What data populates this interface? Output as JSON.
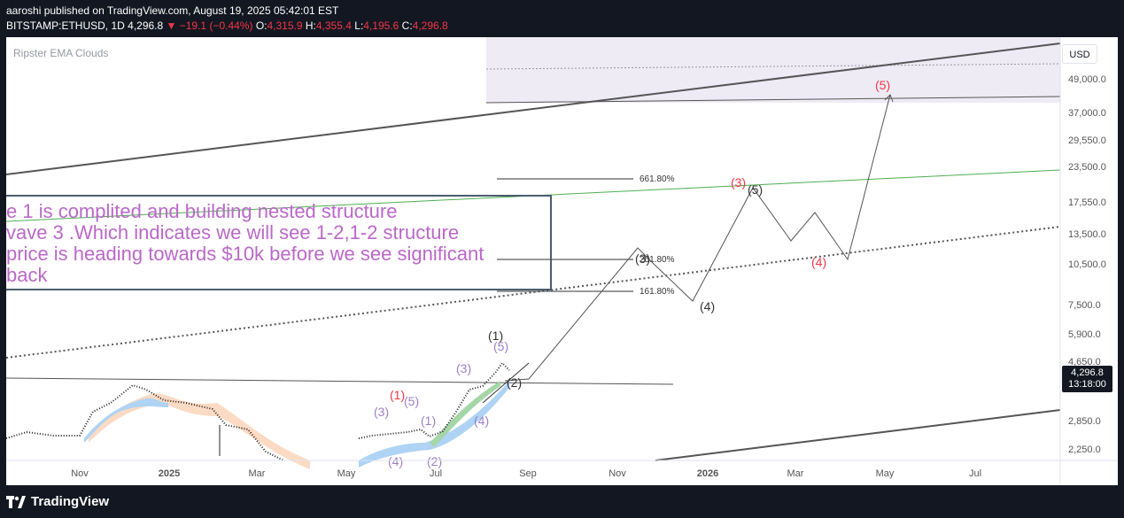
{
  "header": {
    "publisher": "aaroshi published on TradingView.com, August 19, 2025 05:42:01 EST",
    "symbol": "BITSTAMP:ETHUSD, 1D",
    "last": "4,296.8",
    "change": "▼ −19.1 (−0.44%)",
    "o_label": "O:",
    "o_value": "4,315.9",
    "h_label": "H:",
    "h_value": "4,355.4",
    "l_label": "L:",
    "l_value": "4,195.6",
    "c_label": "C:",
    "c_value": "4,296.8"
  },
  "indicator_label": "Ripster EMA Clouds",
  "currency_button": "USD",
  "price_axis": [
    "49,000.0",
    "37,000.0",
    "29,550.0",
    "23,500.0",
    "17,550.0",
    "13,500.0",
    "10,500.0",
    "7,500.0",
    "5,900.0",
    "4,650.0",
    "2,850.0",
    "2,250.0"
  ],
  "current_price": "4,296.8",
  "countdown": "13:18:00",
  "time_axis": [
    "Nov",
    "2025",
    "Mar",
    "May",
    "Jul",
    "Sep",
    "Nov",
    "2026",
    "Mar",
    "May",
    "Jul"
  ],
  "fib_labels": [
    "661.80%",
    "261.80%",
    "161.80%"
  ],
  "note_lines": [
    "e 1 is complited and building nested structure",
    "vave 3 .Which indicates we will see 1-2,1-2 structure",
    " price is heading towards $10k before we see significant",
    " back"
  ],
  "waves": {
    "black": [
      "(1)",
      "(2)",
      "(3)",
      "(4)",
      "(5)"
    ],
    "red": [
      "(1)",
      "(3)",
      "(4)",
      "(5)"
    ],
    "purple": [
      "(3)",
      "(5)",
      "(1)",
      "(3)",
      "(5)",
      "(4)",
      "(4)",
      "(2)"
    ]
  },
  "colors": {
    "background": "#131722",
    "chart_bg": "#ffffff",
    "down": "#f23645",
    "annotation": "#ba68c8",
    "trendline": "#4caf50"
  },
  "footer": {
    "brand": "TradingView"
  }
}
